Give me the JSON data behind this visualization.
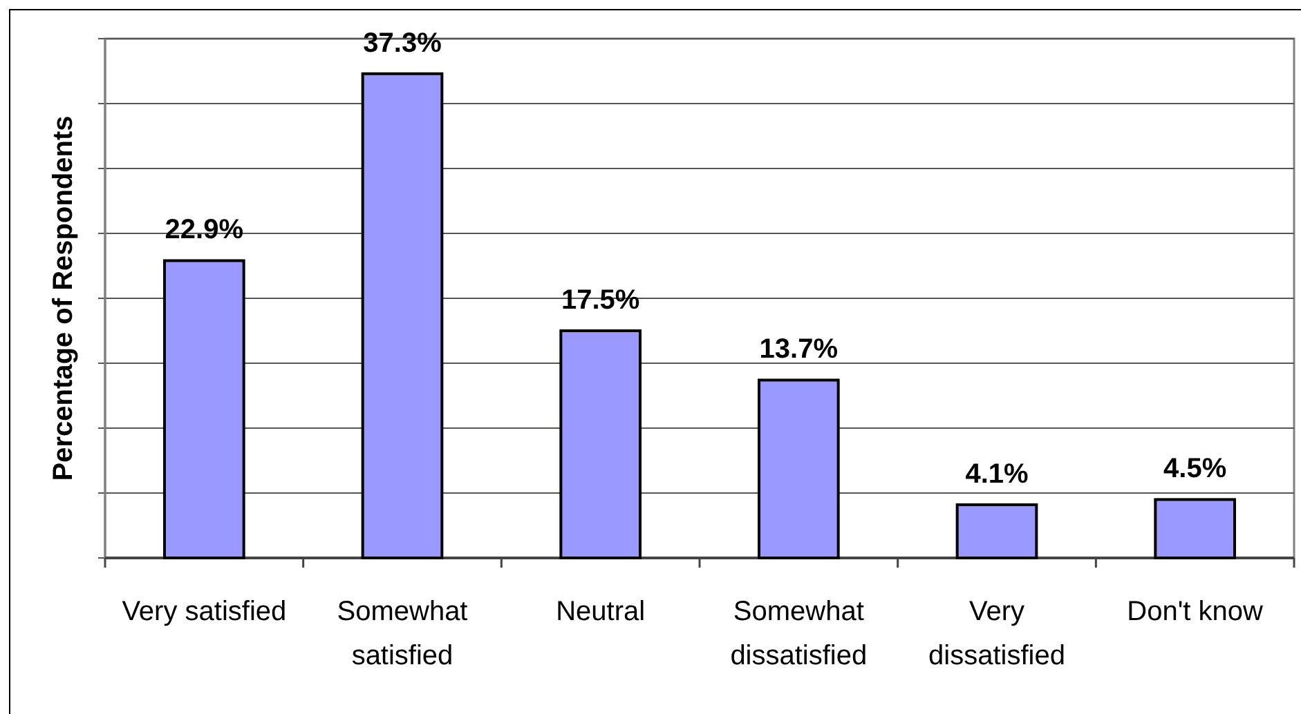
{
  "chart_data": {
    "type": "bar",
    "ylabel": "Percentage of Respondents",
    "categories": [
      "Very satisfied",
      "Somewhat satisfied",
      "Neutral",
      "Somewhat dissatisfied",
      "Very dissatisfied",
      "Don't know"
    ],
    "values": [
      22.9,
      37.3,
      17.5,
      13.7,
      4.1,
      4.5
    ],
    "value_labels": [
      "22.9%",
      "37.3%",
      "17.5%",
      "13.7%",
      "4.1%",
      "4.5%"
    ],
    "color": "#9999ff",
    "ylim": [
      0,
      40
    ],
    "yticks": [
      {
        "value": 0,
        "label": null
      },
      {
        "value": 5,
        "label": null
      },
      {
        "value": 10,
        "label": null
      },
      {
        "value": 15,
        "label": null
      },
      {
        "value": 20,
        "label": null
      },
      {
        "value": 25,
        "label": null
      },
      {
        "value": 30,
        "label": null
      },
      {
        "value": 35,
        "label": null
      },
      {
        "value": 40,
        "label": null
      }
    ],
    "grid": "y"
  }
}
